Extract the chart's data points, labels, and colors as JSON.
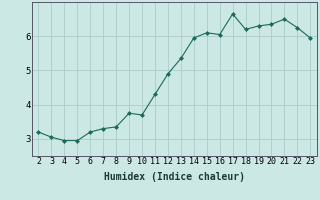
{
  "x": [
    2,
    3,
    4,
    5,
    6,
    7,
    8,
    9,
    10,
    11,
    12,
    13,
    14,
    15,
    16,
    17,
    18,
    19,
    20,
    21,
    22,
    23
  ],
  "y": [
    3.2,
    3.05,
    2.95,
    2.95,
    3.2,
    3.3,
    3.35,
    3.75,
    3.7,
    4.3,
    4.9,
    5.35,
    5.95,
    6.1,
    6.05,
    6.65,
    6.2,
    6.3,
    6.35,
    6.5,
    6.25,
    5.95
  ],
  "xlabel": "Humidex (Indice chaleur)",
  "line_color": "#1a6b5a",
  "marker": "D",
  "marker_size": 2.0,
  "bg_color": "#cce8e4",
  "grid_color": "#aacccc",
  "xlim": [
    1.5,
    23.5
  ],
  "ylim": [
    2.5,
    7.0
  ],
  "yticks": [
    3,
    4,
    5,
    6
  ],
  "xticks": [
    2,
    3,
    4,
    5,
    6,
    7,
    8,
    9,
    10,
    11,
    12,
    13,
    14,
    15,
    16,
    17,
    18,
    19,
    20,
    21,
    22,
    23
  ],
  "tick_fontsize": 6.0,
  "xlabel_fontsize": 7.0,
  "ytick_fontsize": 6.5
}
